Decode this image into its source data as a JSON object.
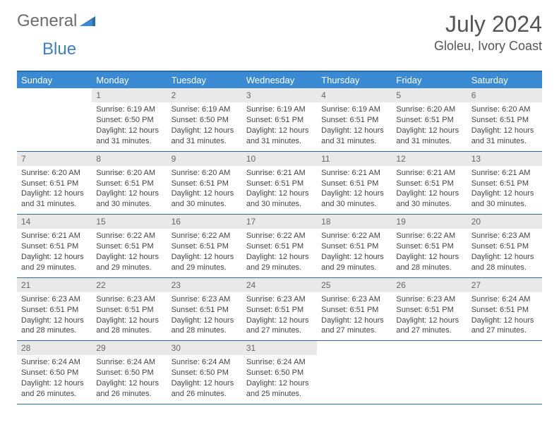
{
  "logo": {
    "text1": "General",
    "text2": "Blue"
  },
  "title": "July 2024",
  "location": "Gloleu, Ivory Coast",
  "colors": {
    "header_bg": "#3b8bd4",
    "header_text": "#ffffff",
    "border": "#2d6ca2",
    "daynum_bg": "#e9e9e9",
    "daynum_text": "#666666",
    "body_text": "#444444",
    "logo_gray": "#6d6d6d",
    "logo_blue": "#3b7fc4",
    "background": "#ffffff"
  },
  "typography": {
    "title_fontsize": 32,
    "location_fontsize": 18,
    "dayheader_fontsize": 13,
    "daynum_fontsize": 12,
    "body_fontsize": 11
  },
  "dayHeaders": [
    "Sunday",
    "Monday",
    "Tuesday",
    "Wednesday",
    "Thursday",
    "Friday",
    "Saturday"
  ],
  "weeks": [
    [
      {
        "num": "",
        "sunrise": "",
        "sunset": "",
        "daylight": "",
        "empty": true
      },
      {
        "num": "1",
        "sunrise": "Sunrise: 6:19 AM",
        "sunset": "Sunset: 6:50 PM",
        "daylight": "Daylight: 12 hours and 31 minutes."
      },
      {
        "num": "2",
        "sunrise": "Sunrise: 6:19 AM",
        "sunset": "Sunset: 6:50 PM",
        "daylight": "Daylight: 12 hours and 31 minutes."
      },
      {
        "num": "3",
        "sunrise": "Sunrise: 6:19 AM",
        "sunset": "Sunset: 6:51 PM",
        "daylight": "Daylight: 12 hours and 31 minutes."
      },
      {
        "num": "4",
        "sunrise": "Sunrise: 6:19 AM",
        "sunset": "Sunset: 6:51 PM",
        "daylight": "Daylight: 12 hours and 31 minutes."
      },
      {
        "num": "5",
        "sunrise": "Sunrise: 6:20 AM",
        "sunset": "Sunset: 6:51 PM",
        "daylight": "Daylight: 12 hours and 31 minutes."
      },
      {
        "num": "6",
        "sunrise": "Sunrise: 6:20 AM",
        "sunset": "Sunset: 6:51 PM",
        "daylight": "Daylight: 12 hours and 31 minutes."
      }
    ],
    [
      {
        "num": "7",
        "sunrise": "Sunrise: 6:20 AM",
        "sunset": "Sunset: 6:51 PM",
        "daylight": "Daylight: 12 hours and 31 minutes."
      },
      {
        "num": "8",
        "sunrise": "Sunrise: 6:20 AM",
        "sunset": "Sunset: 6:51 PM",
        "daylight": "Daylight: 12 hours and 30 minutes."
      },
      {
        "num": "9",
        "sunrise": "Sunrise: 6:20 AM",
        "sunset": "Sunset: 6:51 PM",
        "daylight": "Daylight: 12 hours and 30 minutes."
      },
      {
        "num": "10",
        "sunrise": "Sunrise: 6:21 AM",
        "sunset": "Sunset: 6:51 PM",
        "daylight": "Daylight: 12 hours and 30 minutes."
      },
      {
        "num": "11",
        "sunrise": "Sunrise: 6:21 AM",
        "sunset": "Sunset: 6:51 PM",
        "daylight": "Daylight: 12 hours and 30 minutes."
      },
      {
        "num": "12",
        "sunrise": "Sunrise: 6:21 AM",
        "sunset": "Sunset: 6:51 PM",
        "daylight": "Daylight: 12 hours and 30 minutes."
      },
      {
        "num": "13",
        "sunrise": "Sunrise: 6:21 AM",
        "sunset": "Sunset: 6:51 PM",
        "daylight": "Daylight: 12 hours and 30 minutes."
      }
    ],
    [
      {
        "num": "14",
        "sunrise": "Sunrise: 6:21 AM",
        "sunset": "Sunset: 6:51 PM",
        "daylight": "Daylight: 12 hours and 29 minutes."
      },
      {
        "num": "15",
        "sunrise": "Sunrise: 6:22 AM",
        "sunset": "Sunset: 6:51 PM",
        "daylight": "Daylight: 12 hours and 29 minutes."
      },
      {
        "num": "16",
        "sunrise": "Sunrise: 6:22 AM",
        "sunset": "Sunset: 6:51 PM",
        "daylight": "Daylight: 12 hours and 29 minutes."
      },
      {
        "num": "17",
        "sunrise": "Sunrise: 6:22 AM",
        "sunset": "Sunset: 6:51 PM",
        "daylight": "Daylight: 12 hours and 29 minutes."
      },
      {
        "num": "18",
        "sunrise": "Sunrise: 6:22 AM",
        "sunset": "Sunset: 6:51 PM",
        "daylight": "Daylight: 12 hours and 29 minutes."
      },
      {
        "num": "19",
        "sunrise": "Sunrise: 6:22 AM",
        "sunset": "Sunset: 6:51 PM",
        "daylight": "Daylight: 12 hours and 28 minutes."
      },
      {
        "num": "20",
        "sunrise": "Sunrise: 6:23 AM",
        "sunset": "Sunset: 6:51 PM",
        "daylight": "Daylight: 12 hours and 28 minutes."
      }
    ],
    [
      {
        "num": "21",
        "sunrise": "Sunrise: 6:23 AM",
        "sunset": "Sunset: 6:51 PM",
        "daylight": "Daylight: 12 hours and 28 minutes."
      },
      {
        "num": "22",
        "sunrise": "Sunrise: 6:23 AM",
        "sunset": "Sunset: 6:51 PM",
        "daylight": "Daylight: 12 hours and 28 minutes."
      },
      {
        "num": "23",
        "sunrise": "Sunrise: 6:23 AM",
        "sunset": "Sunset: 6:51 PM",
        "daylight": "Daylight: 12 hours and 28 minutes."
      },
      {
        "num": "24",
        "sunrise": "Sunrise: 6:23 AM",
        "sunset": "Sunset: 6:51 PM",
        "daylight": "Daylight: 12 hours and 27 minutes."
      },
      {
        "num": "25",
        "sunrise": "Sunrise: 6:23 AM",
        "sunset": "Sunset: 6:51 PM",
        "daylight": "Daylight: 12 hours and 27 minutes."
      },
      {
        "num": "26",
        "sunrise": "Sunrise: 6:23 AM",
        "sunset": "Sunset: 6:51 PM",
        "daylight": "Daylight: 12 hours and 27 minutes."
      },
      {
        "num": "27",
        "sunrise": "Sunrise: 6:24 AM",
        "sunset": "Sunset: 6:51 PM",
        "daylight": "Daylight: 12 hours and 27 minutes."
      }
    ],
    [
      {
        "num": "28",
        "sunrise": "Sunrise: 6:24 AM",
        "sunset": "Sunset: 6:50 PM",
        "daylight": "Daylight: 12 hours and 26 minutes."
      },
      {
        "num": "29",
        "sunrise": "Sunrise: 6:24 AM",
        "sunset": "Sunset: 6:50 PM",
        "daylight": "Daylight: 12 hours and 26 minutes."
      },
      {
        "num": "30",
        "sunrise": "Sunrise: 6:24 AM",
        "sunset": "Sunset: 6:50 PM",
        "daylight": "Daylight: 12 hours and 26 minutes."
      },
      {
        "num": "31",
        "sunrise": "Sunrise: 6:24 AM",
        "sunset": "Sunset: 6:50 PM",
        "daylight": "Daylight: 12 hours and 25 minutes."
      },
      {
        "num": "",
        "sunrise": "",
        "sunset": "",
        "daylight": "",
        "empty": true
      },
      {
        "num": "",
        "sunrise": "",
        "sunset": "",
        "daylight": "",
        "empty": true
      },
      {
        "num": "",
        "sunrise": "",
        "sunset": "",
        "daylight": "",
        "empty": true
      }
    ]
  ]
}
